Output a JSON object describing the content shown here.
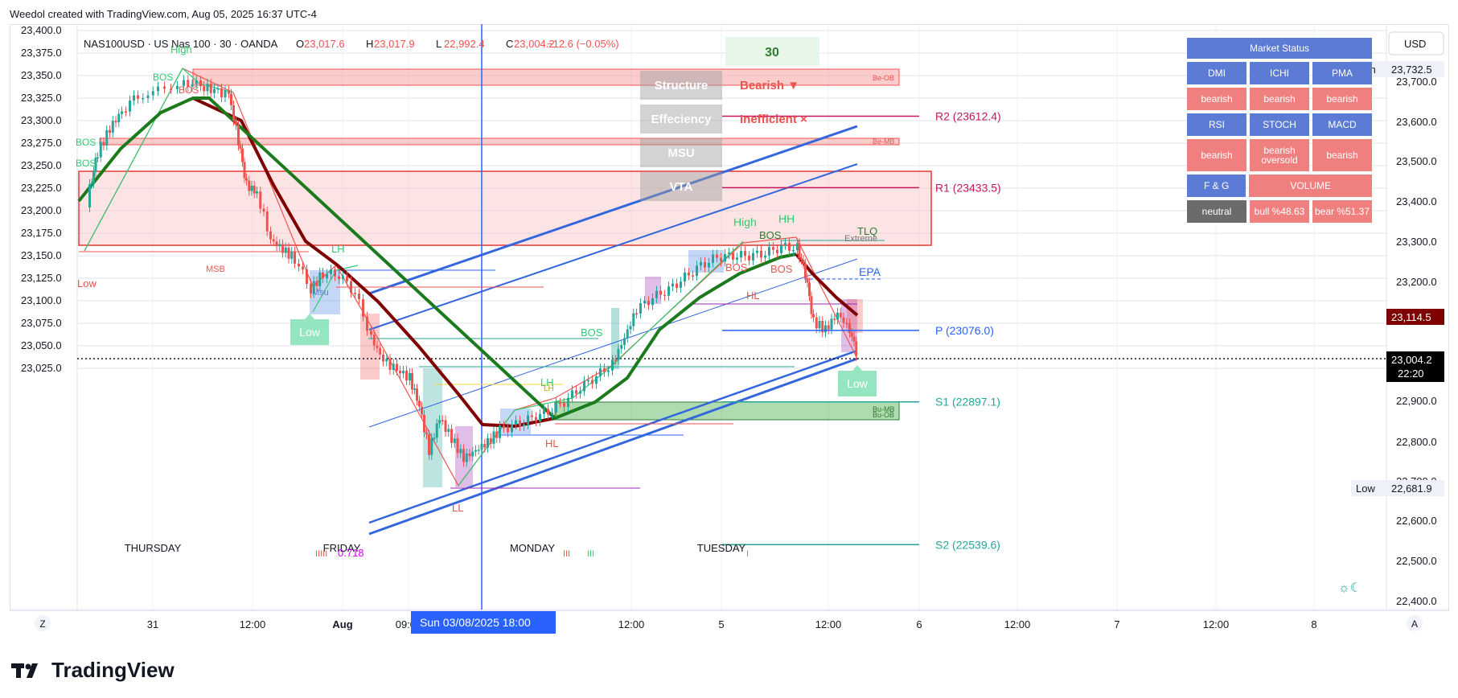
{
  "header": {
    "text": "Weedol created with TradingView.com, Aug 05, 2025 16:37 UTC-4"
  },
  "brand": {
    "name": "TradingView"
  },
  "legend": {
    "symbol": "NAS100USD · US Nas 100 · 30 · OANDA",
    "o_label": "O",
    "o": "23,017.6",
    "h_label": "H",
    "h": "23,017.9",
    "l_label": "L",
    "l": "22,992.4",
    "c_label": "C",
    "c": "23,004.2",
    "change": "−12.6 (−0.05%)"
  },
  "colors": {
    "bull": "#26a69a",
    "bear": "#ef5350",
    "ema_dark": "#7f0000",
    "ema_green": "#1b7a1b",
    "blue": "#2962ff",
    "pivot": "#c2185b",
    "panel_blue": "#5b7bd5",
    "panel_red": "#f08080",
    "panel_gray": "#6b6b6b"
  },
  "timeframe_box": "30",
  "structure_table": [
    {
      "label": "Structure",
      "value": "Bearish ▼"
    },
    {
      "label": "Effeciency",
      "value": "Inefficient ×"
    },
    {
      "label": "MSU",
      "value": ""
    },
    {
      "label": "VTA",
      "value": ""
    }
  ],
  "market_status": {
    "title": "Market Status",
    "rows": [
      [
        "DMI",
        "ICHI",
        "PMA"
      ],
      [
        "bearish",
        "bearish",
        "bearish"
      ],
      [
        "RSI",
        "STOCH",
        "MACD"
      ],
      [
        "bearish",
        "bearish oversold",
        "bearish"
      ],
      [
        "F & G",
        "VOLUME"
      ],
      [
        "neutral",
        "bull %48.63",
        "bear %51.37"
      ]
    ]
  },
  "pivots": [
    {
      "label": "R2 (23612.4)",
      "value": 23612.4
    },
    {
      "label": "R1 (23433.5)",
      "value": 23433.5
    },
    {
      "label": "P (23076.0)",
      "value": 23076.0
    },
    {
      "label": "S1 (22897.1)",
      "value": 22897.1
    },
    {
      "label": "S2 (22539.6)",
      "value": 22539.6
    }
  ],
  "annotations": {
    "high1": "High",
    "high2": "High",
    "hh": "HH",
    "lh": "LH",
    "lh2": "LH",
    "hl": "HL",
    "hl2": "HL",
    "ll": "LL",
    "low1": "Low",
    "bos": "BOS",
    "msb": "MSB",
    "epa": "EPA",
    "tlq": "TLQ",
    "extreme": "Extreme",
    "fib": "0.718",
    "be_ob": "Be-OB",
    "be_mb": "Be-MB",
    "bu_ob": "Bu-OB",
    "bu_mb": "Bu-MB",
    "low_tag1": "Low",
    "low_tag2": "Low",
    "msu_small": "Msu",
    "lh_small": "LH",
    "roman_a": "IIIII",
    "roman_b": "III",
    "roman_c": "III",
    "roman_d": "I"
  },
  "sessions": [
    "THURSDAY",
    "FRIDAY",
    "MONDAY",
    "TUESDAY"
  ],
  "crosshair_label": "Sun 03/08/2025   18:00",
  "time_axis": [
    "31",
    "12:00",
    "Aug",
    "09:00",
    "12:00",
    "5",
    "12:00",
    "6",
    "12:00",
    "7",
    "12:00",
    "8"
  ],
  "left_axis": [
    "23,400.0",
    "23,375.0",
    "23,350.0",
    "23,325.0",
    "23,300.0",
    "23,275.0",
    "23,250.0",
    "23,225.0",
    "23,200.0",
    "23,175.0",
    "23,150.0",
    "23,125.0",
    "23,100.0",
    "23,075.0",
    "23,050.0",
    "23,025.0"
  ],
  "right_axis": {
    "currency": "USD",
    "ticks": [
      "23,700.0",
      "23,600.0",
      "23,500.0",
      "23,400.0",
      "23,300.0",
      "23,200.0",
      "22,900.0",
      "22,800.0",
      "22,700.0",
      "22,600.0",
      "22,500.0",
      "22,400.0"
    ],
    "high_label": "High",
    "high_value": "23,732.5",
    "low_label": "Low",
    "low_value": "22,681.9",
    "ema_tag": "23,114.5",
    "price_tag": "23,004.2",
    "countdown": "22:20"
  },
  "axis_buttons": {
    "z": "Z",
    "a": "A"
  },
  "chart_data": {
    "type": "candlestick",
    "symbol": "NAS100USD",
    "interval": "30",
    "ylim": [
      23015,
      23405
    ],
    "series": [
      {
        "name": "price_path",
        "x": [
          "Jul 30 16:00",
          "Jul 31 04:00",
          "Jul 31 12:00",
          "Jul 31 17:00",
          "Aug 1 02:00",
          "Aug 1 06:00",
          "Aug 1 09:00",
          "Aug 1 13:00",
          "Aug 4 03:00",
          "Aug 4 09:00",
          "Aug 4 13:00",
          "Aug 5 02:00",
          "Aug 5 08:00",
          "Aug 5 12:00",
          "Aug 5 16:30"
        ],
        "values": [
          23290,
          23362,
          23335,
          23262,
          23238,
          23205,
          23165,
          23112,
          23140,
          23162,
          23215,
          23250,
          23258,
          23205,
          23180
        ]
      }
    ]
  }
}
